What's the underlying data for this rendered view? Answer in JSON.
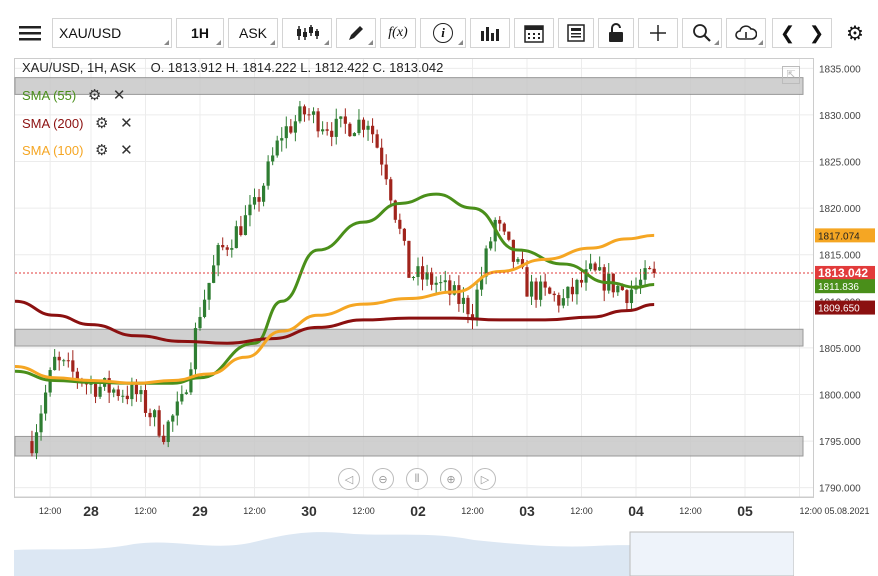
{
  "toolbar": {
    "symbol": "XAU/USD",
    "timeframe": "1H",
    "price_type": "ASK",
    "fx_label": "f(x)",
    "info_label": "i",
    "prev": "❮",
    "next": "❯"
  },
  "legend": {
    "header": "XAU/USD, 1H, ASK    O. 1813.912 H. 1814.222 L. 1812.422 C. 1813.042",
    "sma55": "SMA (55)",
    "sma200": "SMA (200)",
    "sma100": "SMA (100)"
  },
  "colors": {
    "up": "#2e7d32",
    "down": "#a0241c",
    "sma55": "#4a8f1a",
    "sma200": "#8b1010",
    "sma100": "#f5a623",
    "band": "#c8c8c8"
  },
  "chart_data": {
    "type": "candlestick",
    "symbol": "XAU/USD",
    "timeframe": "1H",
    "ylim": [
      1789,
      1836
    ],
    "y_ticks": [
      "1835.000",
      "1830.000",
      "1825.000",
      "1820.000",
      "1815.000",
      "1810.000",
      "1805.000",
      "1800.000",
      "1795.000",
      "1790.000"
    ],
    "x_ticks": [
      {
        "label": "12:00",
        "kind": "time",
        "t": -9
      },
      {
        "label": "28",
        "kind": "day",
        "t": 0
      },
      {
        "label": "12:00",
        "kind": "time",
        "t": 12
      },
      {
        "label": "29",
        "kind": "day",
        "t": 24
      },
      {
        "label": "12:00",
        "kind": "time",
        "t": 36
      },
      {
        "label": "30",
        "kind": "day",
        "t": 48
      },
      {
        "label": "12:00",
        "kind": "time",
        "t": 60
      },
      {
        "label": "02",
        "kind": "day",
        "t": 72
      },
      {
        "label": "12:00",
        "kind": "time",
        "t": 84
      },
      {
        "label": "03",
        "kind": "day",
        "t": 96
      },
      {
        "label": "12:00",
        "kind": "time",
        "t": 108
      },
      {
        "label": "04",
        "kind": "day",
        "t": 120
      },
      {
        "label": "12:00",
        "kind": "time",
        "t": 132
      },
      {
        "label": "05",
        "kind": "day",
        "t": 144
      },
      {
        "label": "12:00 05.08.2021",
        "kind": "time",
        "t": 156
      }
    ],
    "last_price": "1813.042",
    "price_tags": [
      {
        "label": "1817.074",
        "value": 1817.074,
        "series": "SMA (100)"
      },
      {
        "label": "1813.042",
        "value": 1813.042,
        "series": "price"
      },
      {
        "label": "1811.836",
        "value": 1811.836,
        "series": "SMA (55)"
      },
      {
        "label": "1809.650",
        "value": 1809.65,
        "series": "SMA (200)"
      }
    ],
    "bands": [
      [
        1832.2,
        1834.0
      ],
      [
        1805.2,
        1807.0
      ],
      [
        1793.4,
        1795.5
      ]
    ],
    "key_points": [
      {
        "t": -13,
        "close": 1795
      },
      {
        "t": -8,
        "close": 1803.5
      },
      {
        "t": 0,
        "close": 1801
      },
      {
        "t": 10,
        "close": 1800
      },
      {
        "t": 16,
        "close": 1796
      },
      {
        "t": 20,
        "close": 1799
      },
      {
        "t": 24,
        "close": 1809
      },
      {
        "t": 28,
        "close": 1815
      },
      {
        "t": 36,
        "close": 1820
      },
      {
        "t": 42,
        "close": 1828
      },
      {
        "t": 47,
        "close": 1830.2
      },
      {
        "t": 54,
        "close": 1828.5
      },
      {
        "t": 61,
        "close": 1829.5
      },
      {
        "t": 65,
        "close": 1824
      },
      {
        "t": 70,
        "close": 1813
      },
      {
        "t": 76,
        "close": 1812
      },
      {
        "t": 84,
        "close": 1809
      },
      {
        "t": 89,
        "close": 1818.5
      },
      {
        "t": 96,
        "close": 1811.5
      },
      {
        "t": 104,
        "close": 1810
      },
      {
        "t": 110,
        "close": 1813
      },
      {
        "t": 118,
        "close": 1811
      },
      {
        "t": 124,
        "close": 1813.042
      }
    ],
    "sma": [
      {
        "name": "SMA (55)",
        "points": [
          [
            -18,
            1802.5
          ],
          [
            -8,
            1801.5
          ],
          [
            0,
            1801.3
          ],
          [
            10,
            1801.2
          ],
          [
            18,
            1801.2
          ],
          [
            24,
            1801.8
          ],
          [
            36,
            1805.5
          ],
          [
            42,
            1810
          ],
          [
            50,
            1815.5
          ],
          [
            60,
            1818.5
          ],
          [
            68,
            1820.5
          ],
          [
            76,
            1821.5
          ],
          [
            84,
            1820
          ],
          [
            94,
            1815.5
          ],
          [
            104,
            1814
          ],
          [
            114,
            1812
          ],
          [
            120,
            1811.5
          ],
          [
            124,
            1811.8
          ]
        ]
      },
      {
        "name": "SMA (200)",
        "points": [
          [
            -18,
            1810
          ],
          [
            -8,
            1808.5
          ],
          [
            0,
            1807.5
          ],
          [
            10,
            1806.3
          ],
          [
            20,
            1805.7
          ],
          [
            30,
            1805.5
          ],
          [
            40,
            1806
          ],
          [
            50,
            1807.2
          ],
          [
            60,
            1808
          ],
          [
            70,
            1808.2
          ],
          [
            80,
            1808.2
          ],
          [
            90,
            1808
          ],
          [
            100,
            1808
          ],
          [
            110,
            1808.3
          ],
          [
            118,
            1809
          ],
          [
            124,
            1809.65
          ]
        ]
      },
      {
        "name": "SMA (100)",
        "points": [
          [
            -18,
            1803
          ],
          [
            -8,
            1801.8
          ],
          [
            0,
            1801.5
          ],
          [
            10,
            1801.2
          ],
          [
            18,
            1801.5
          ],
          [
            26,
            1802.2
          ],
          [
            34,
            1804
          ],
          [
            42,
            1806.8
          ],
          [
            50,
            1808.5
          ],
          [
            60,
            1809.7
          ],
          [
            70,
            1810.3
          ],
          [
            80,
            1811
          ],
          [
            90,
            1813.2
          ],
          [
            100,
            1814.5
          ],
          [
            110,
            1815.7
          ],
          [
            118,
            1816.7
          ],
          [
            124,
            1817.07
          ]
        ]
      }
    ]
  }
}
